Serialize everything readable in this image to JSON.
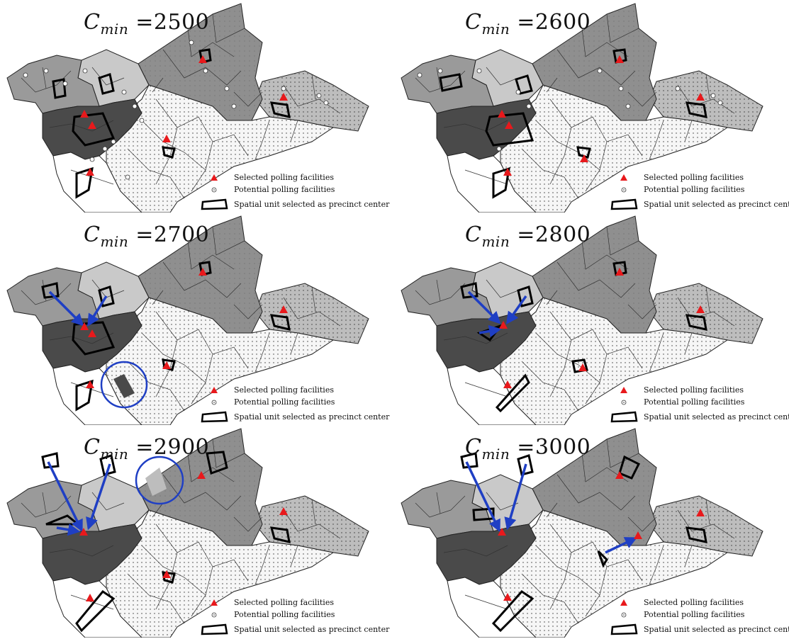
{
  "panels": [
    {
      "value_text": "=2500",
      "extras": {
        "circle": null,
        "arrows": []
      }
    },
    {
      "value_text": "=2600",
      "extras": {
        "circle": null,
        "arrows": []
      }
    },
    {
      "value_text": "=2700",
      "extras": {
        "circle": "south",
        "arrows": [
          "nw",
          "n"
        ]
      }
    },
    {
      "value_text": "=2800",
      "extras": {
        "circle": null,
        "arrows": [
          "nw",
          "n",
          "w"
        ]
      }
    },
    {
      "value_text": "=2900",
      "extras": {
        "circle": "north",
        "arrows": [
          "nw",
          "n",
          "w"
        ]
      }
    },
    {
      "value_text": "=3000",
      "extras": {
        "circle": null,
        "arrows": [
          "nw",
          "n",
          "east"
        ]
      }
    }
  ],
  "symbol": {
    "letter": "C",
    "subscript": "min"
  },
  "legend": {
    "selected": "Selected polling facilities",
    "potential": "Potential polling facilities",
    "center": "Spatial unit selected as precinct center"
  },
  "colors": {
    "selected_marker": "#e8191c",
    "arrow": "#1f3fc4",
    "circle": "#1f3fc4",
    "dark_region": "#4a4a4a",
    "mid_region": "#8f8f8f",
    "light_region": "#bdbdbd",
    "white_region": "#f4f4f4"
  }
}
